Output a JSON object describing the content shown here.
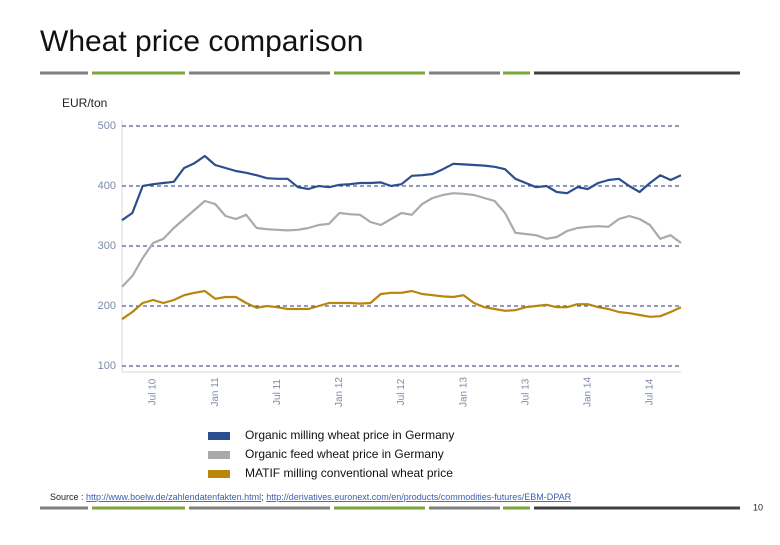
{
  "chart_data": {
    "type": "line",
    "title": "Wheat price comparison",
    "y_label": "EUR/ton",
    "categories": [
      null,
      null,
      null,
      "Jul 10",
      null,
      null,
      null,
      null,
      null,
      "Jan 11",
      null,
      null,
      null,
      null,
      null,
      "Jul 11",
      null,
      null,
      null,
      null,
      null,
      "Jan 12",
      null,
      null,
      null,
      null,
      null,
      "Jul 12",
      null,
      null,
      null,
      null,
      null,
      "Jan 13",
      null,
      null,
      null,
      null,
      null,
      "Jul 13",
      null,
      null,
      null,
      null,
      null,
      "Jan 14",
      null,
      null,
      null,
      null,
      null,
      "Jul 14",
      null,
      null,
      null
    ],
    "series": [
      {
        "name": "Organic milling wheat price in Germany",
        "color": "#2b4f8e",
        "values": [
          343,
          355,
          400,
          403,
          405,
          407,
          430,
          438,
          450,
          435,
          430,
          425,
          422,
          418,
          413,
          412,
          412,
          398,
          395,
          400,
          398,
          402,
          403,
          405,
          405,
          406,
          400,
          403,
          417,
          418,
          420,
          428,
          437,
          436,
          435,
          434,
          432,
          428,
          412,
          405,
          398,
          400,
          390,
          388,
          398,
          395,
          405,
          410,
          412,
          400,
          390,
          405,
          418,
          410,
          418
        ]
      },
      {
        "name": "Organic feed wheat price in Germany",
        "color": "#aaaaaa",
        "values": [
          232,
          250,
          280,
          305,
          312,
          330,
          345,
          360,
          375,
          370,
          350,
          345,
          352,
          330,
          328,
          327,
          326,
          327,
          330,
          335,
          337,
          355,
          353,
          352,
          340,
          335,
          345,
          355,
          352,
          370,
          380,
          385,
          388,
          387,
          385,
          380,
          375,
          355,
          322,
          320,
          318,
          312,
          315,
          325,
          330,
          332,
          333,
          332,
          345,
          350,
          345,
          335,
          312,
          318,
          305
        ]
      },
      {
        "name": "MATIF milling conventional wheat price",
        "color": "#b8860b",
        "values": [
          178,
          190,
          205,
          210,
          205,
          210,
          218,
          222,
          225,
          212,
          215,
          215,
          205,
          197,
          200,
          198,
          195,
          195,
          195,
          200,
          205,
          205,
          205,
          204,
          205,
          220,
          222,
          222,
          225,
          220,
          218,
          216,
          215,
          218,
          205,
          198,
          195,
          192,
          193,
          198,
          200,
          202,
          198,
          198,
          203,
          203,
          198,
          195,
          190,
          188,
          185,
          182,
          183,
          190,
          198
        ]
      }
    ],
    "ylim": [
      100,
      500
    ],
    "yticks": [
      100,
      200,
      300,
      400,
      500
    ],
    "grid": true,
    "grid_color": "#24367a",
    "legend": "bottom",
    "source": {
      "label": "Source :",
      "links": [
        "http://www.boelw.de/zahlendatenfakten.html",
        "http://derivatives.euronext.com/en/products/commodities-futures/EBM-DPAR"
      ],
      "separator": ";"
    },
    "page_number": "10"
  }
}
